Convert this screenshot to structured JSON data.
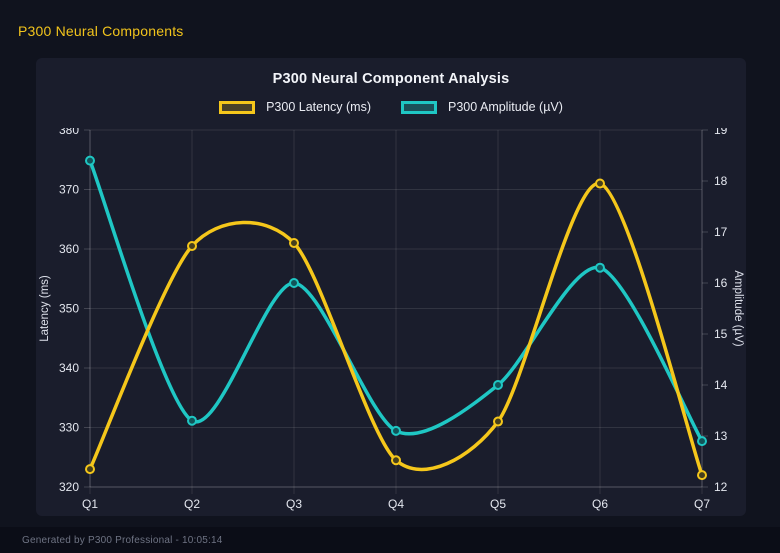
{
  "page": {
    "header_title": "P300 Neural Components",
    "footer_text": "Generated by P300 Professional - 10:05:14"
  },
  "chart_data": {
    "type": "line",
    "title": "P300 Neural Component Analysis",
    "categories": [
      "Q1",
      "Q2",
      "Q3",
      "Q4",
      "Q5",
      "Q6",
      "Q7"
    ],
    "series": [
      {
        "name": "P300 Latency (ms)",
        "axis": "left",
        "color": "#f5c71b",
        "fill": "rgba(245,199,27,0.22)",
        "point_fill": "#46401d",
        "values": [
          323,
          360.5,
          361,
          324.5,
          331,
          371,
          322
        ]
      },
      {
        "name": "P300 Amplitude (µV)",
        "axis": "right",
        "color": "#1fc7c4",
        "fill": "rgba(31,199,196,0.30)",
        "point_fill": "#125459",
        "values": [
          18.4,
          13.3,
          16.0,
          13.1,
          14.0,
          16.3,
          12.9
        ]
      }
    ],
    "left_axis": {
      "label": "Latency (ms)",
      "min": 320,
      "max": 380,
      "step": 10
    },
    "right_axis": {
      "label": "Amplitude (µV)",
      "min": 12,
      "max": 19,
      "step": 1
    },
    "legend_position": "top",
    "grid": true,
    "smoothing_tension": 0.4
  },
  "colors": {
    "page_bg": "#10131e",
    "panel_bg": "#1a1d2c",
    "footer_bg": "#0b0d17",
    "accent_yellow": "#f2c41c",
    "grid": "rgba(255,255,255,0.10)",
    "axis_border": "rgba(255,255,255,0.18)",
    "tick_label": "#e4e7ef"
  }
}
